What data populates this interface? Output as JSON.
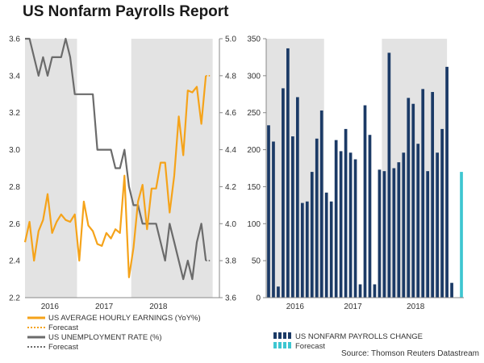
{
  "title": "US Nonfarm Payrolls Report",
  "source": "Source: Thomson Reuters Datastream",
  "colors": {
    "earnings": "#f5a31a",
    "unemployment": "#6b6b6b",
    "payrolls": "#1b3a66",
    "payrolls_forecast": "#3ec6d1",
    "shade": "#e3e3e3"
  },
  "chart_data": [
    {
      "type": "line",
      "title": "",
      "x_labels": [
        "2016",
        "2017",
        "2018"
      ],
      "left_axis": {
        "ylim": [
          2.2,
          3.6
        ],
        "ticks": [
          "2.2",
          "2.4",
          "2.6",
          "2.8",
          "3.0",
          "3.2",
          "3.4",
          "3.6"
        ]
      },
      "right_axis": {
        "ylim": [
          3.6,
          5.0
        ],
        "ticks": [
          "3.6",
          "3.8",
          "4.0",
          "4.2",
          "4.4",
          "4.6",
          "4.8",
          "5.0"
        ]
      },
      "shaded_years": [
        "2016",
        "2018"
      ],
      "series": [
        {
          "name": "US AVERAGE HOURLY EARNINGS (YoY%)",
          "axis": "left",
          "values": [
            2.5,
            2.61,
            2.4,
            2.56,
            2.62,
            2.76,
            2.55,
            2.61,
            2.65,
            2.62,
            2.61,
            2.65,
            2.4,
            2.72,
            2.59,
            2.56,
            2.49,
            2.48,
            2.55,
            2.52,
            2.57,
            2.55,
            2.86,
            2.31,
            2.47,
            2.72,
            2.81,
            2.57,
            2.79,
            2.79,
            2.93,
            2.93,
            2.66,
            2.86,
            3.18,
            2.97,
            3.32,
            3.31,
            3.34,
            3.14,
            3.4
          ]
        },
        {
          "name": "Forecast",
          "axis": "left",
          "dotted": true,
          "start_index": 40,
          "values": [
            3.4,
            3.4
          ]
        },
        {
          "name": "US UNEMPLOYMENT RATE (%)",
          "axis": "right",
          "values": [
            5.0,
            5.0,
            4.9,
            4.8,
            4.9,
            4.8,
            4.9,
            4.9,
            4.9,
            5.0,
            4.9,
            4.7,
            4.7,
            4.7,
            4.7,
            4.7,
            4.4,
            4.4,
            4.4,
            4.4,
            4.3,
            4.3,
            4.4,
            4.2,
            4.1,
            4.1,
            4.0,
            4.0,
            4.0,
            4.0,
            3.9,
            3.8,
            4.0,
            3.9,
            3.8,
            3.7,
            3.8,
            3.7,
            3.9,
            4.0,
            3.8
          ]
        },
        {
          "name": "Forecast",
          "axis": "right",
          "dotted": true,
          "start_index": 40,
          "values": [
            3.8,
            3.8
          ]
        }
      ]
    },
    {
      "type": "bar",
      "title": "",
      "x_labels": [
        "2016",
        "2017",
        "2018"
      ],
      "ylim": [
        0,
        350
      ],
      "ticks": [
        "0",
        "50",
        "100",
        "150",
        "200",
        "250",
        "300",
        "350"
      ],
      "shaded_years": [
        "2016",
        "2018"
      ],
      "series": [
        {
          "name": "US NONFARM PAYROLLS CHANGE",
          "values": [
            233,
            211,
            15,
            283,
            337,
            218,
            271,
            128,
            130,
            170,
            215,
            253,
            142,
            130,
            213,
            198,
            228,
            196,
            187,
            18,
            260,
            220,
            18,
            173,
            171,
            331,
            175,
            183,
            196,
            270,
            262,
            208,
            282,
            171,
            278,
            196,
            228,
            312,
            20
          ]
        },
        {
          "name": "Forecast",
          "forecast": true,
          "values": [
            170
          ]
        }
      ]
    }
  ]
}
